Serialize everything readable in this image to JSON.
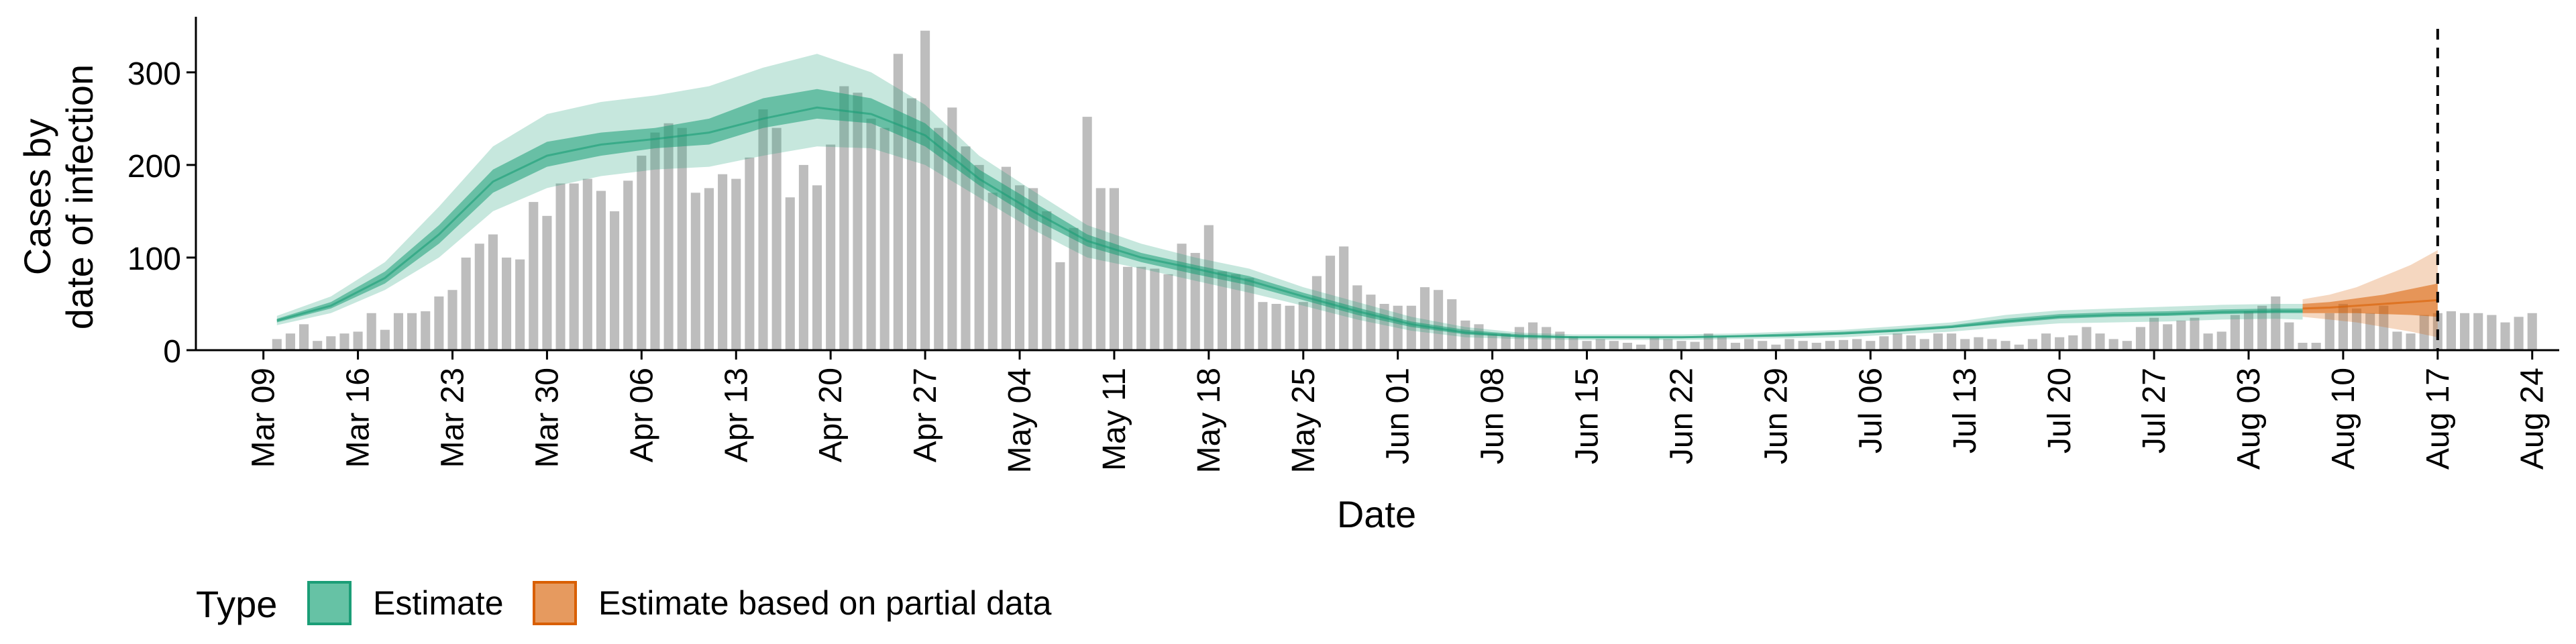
{
  "chart_data": {
    "type": "bar",
    "xlabel": "Date",
    "ylabel": [
      "Cases by",
      "date of infection"
    ],
    "ylim": [
      0,
      360
    ],
    "yticks": [
      0,
      100,
      200,
      300
    ],
    "xlim": [
      "2020-03-04",
      "2020-08-26"
    ],
    "xticks": [
      {
        "date": "2020-03-09",
        "label": "Mar 09"
      },
      {
        "date": "2020-03-16",
        "label": "Mar 16"
      },
      {
        "date": "2020-03-23",
        "label": "Mar 23"
      },
      {
        "date": "2020-03-30",
        "label": "Mar 30"
      },
      {
        "date": "2020-04-06",
        "label": "Apr 06"
      },
      {
        "date": "2020-04-13",
        "label": "Apr 13"
      },
      {
        "date": "2020-04-20",
        "label": "Apr 20"
      },
      {
        "date": "2020-04-27",
        "label": "Apr 27"
      },
      {
        "date": "2020-05-04",
        "label": "May 04"
      },
      {
        "date": "2020-05-11",
        "label": "May 11"
      },
      {
        "date": "2020-05-18",
        "label": "May 18"
      },
      {
        "date": "2020-05-25",
        "label": "May 25"
      },
      {
        "date": "2020-06-01",
        "label": "Jun 01"
      },
      {
        "date": "2020-06-08",
        "label": "Jun 08"
      },
      {
        "date": "2020-06-15",
        "label": "Jun 15"
      },
      {
        "date": "2020-06-22",
        "label": "Jun 22"
      },
      {
        "date": "2020-06-29",
        "label": "Jun 29"
      },
      {
        "date": "2020-07-06",
        "label": "Jul 06"
      },
      {
        "date": "2020-07-13",
        "label": "Jul 13"
      },
      {
        "date": "2020-07-20",
        "label": "Jul 20"
      },
      {
        "date": "2020-07-27",
        "label": "Jul 27"
      },
      {
        "date": "2020-08-03",
        "label": "Aug 03"
      },
      {
        "date": "2020-08-10",
        "label": "Aug 10"
      },
      {
        "date": "2020-08-17",
        "label": "Aug 17"
      },
      {
        "date": "2020-08-24",
        "label": "Aug 24"
      }
    ],
    "reference_line": "2020-08-17",
    "grid": false,
    "legend": {
      "position": "bottom-left",
      "title": "Type",
      "entries": [
        {
          "label": "Estimate",
          "fill": "#66C2A5",
          "stroke": "#1B9E77"
        },
        {
          "label": "Estimate based on partial data",
          "fill": "#E69A5F",
          "stroke": "#D95F02"
        }
      ]
    },
    "colors": {
      "bars": "#BDBDBD",
      "estimate": "#1B9E77",
      "partial": "#D95F02",
      "reference_line": "#000000"
    },
    "reported_cases": {
      "start_date": "2020-03-10",
      "values": [
        12,
        18,
        28,
        10,
        15,
        18,
        20,
        40,
        22,
        40,
        40,
        42,
        58,
        65,
        100,
        115,
        125,
        100,
        98,
        160,
        145,
        180,
        180,
        185,
        172,
        150,
        183,
        210,
        235,
        245,
        240,
        170,
        175,
        190,
        185,
        208,
        260,
        240,
        165,
        200,
        178,
        222,
        285,
        278,
        250,
        240,
        320,
        272,
        345,
        240,
        262,
        220,
        200,
        170,
        198,
        178,
        175,
        150,
        95,
        132,
        252,
        175,
        175,
        90,
        90,
        88,
        82,
        115,
        105,
        135,
        85,
        82,
        78,
        52,
        50,
        48,
        52,
        80,
        102,
        112,
        70,
        60,
        50,
        48,
        48,
        68,
        65,
        55,
        32,
        28,
        18,
        18,
        25,
        30,
        25,
        20,
        15,
        10,
        12,
        10,
        8,
        6,
        14,
        12,
        10,
        9,
        18,
        14,
        8,
        12,
        10,
        6,
        12,
        10,
        8,
        10,
        11,
        12,
        10,
        15,
        18,
        16,
        12,
        18,
        18,
        12,
        14,
        12,
        10,
        6,
        12,
        18,
        14,
        16,
        25,
        18,
        12,
        10,
        25,
        35,
        28,
        32,
        35,
        18,
        20,
        38,
        42,
        48,
        58,
        30,
        8,
        8,
        40,
        50,
        45,
        40,
        48,
        20,
        18,
        38,
        40,
        42,
        40,
        40,
        38,
        30,
        36,
        40
      ]
    },
    "estimate": {
      "dates": [
        "2020-03-10",
        "2020-03-14",
        "2020-03-18",
        "2020-03-22",
        "2020-03-26",
        "2020-03-30",
        "2020-04-03",
        "2020-04-07",
        "2020-04-11",
        "2020-04-15",
        "2020-04-19",
        "2020-04-23",
        "2020-04-27",
        "2020-05-01",
        "2020-05-05",
        "2020-05-09",
        "2020-05-13",
        "2020-05-17",
        "2020-05-21",
        "2020-05-25",
        "2020-05-29",
        "2020-06-02",
        "2020-06-06",
        "2020-06-10",
        "2020-06-14",
        "2020-06-18",
        "2020-06-22",
        "2020-06-26",
        "2020-06-30",
        "2020-07-04",
        "2020-07-08",
        "2020-07-12",
        "2020-07-16",
        "2020-07-20",
        "2020-07-24",
        "2020-07-28",
        "2020-08-01",
        "2020-08-05",
        "2020-08-07"
      ],
      "median": [
        32,
        48,
        78,
        125,
        182,
        210,
        222,
        228,
        235,
        250,
        262,
        255,
        232,
        185,
        150,
        118,
        100,
        88,
        75,
        58,
        42,
        28,
        19,
        15,
        14,
        14,
        14,
        15,
        16,
        18,
        21,
        25,
        31,
        36,
        38,
        39,
        41,
        42,
        42
      ],
      "lower50": [
        30,
        45,
        72,
        115,
        170,
        198,
        210,
        218,
        222,
        240,
        250,
        245,
        220,
        178,
        142,
        112,
        95,
        82,
        70,
        54,
        38,
        25,
        17,
        14,
        13,
        13,
        13,
        14,
        15,
        17,
        20,
        24,
        29,
        34,
        36,
        37,
        39,
        40,
        40
      ],
      "upper50": [
        34,
        52,
        85,
        135,
        195,
        225,
        235,
        240,
        250,
        272,
        282,
        272,
        245,
        195,
        160,
        125,
        105,
        92,
        80,
        62,
        46,
        31,
        22,
        17,
        15,
        15,
        15,
        16,
        18,
        20,
        23,
        27,
        34,
        39,
        41,
        42,
        44,
        45,
        45
      ],
      "lower90": [
        27,
        40,
        65,
        100,
        150,
        175,
        188,
        195,
        198,
        210,
        220,
        218,
        200,
        165,
        130,
        100,
        88,
        75,
        62,
        48,
        33,
        21,
        14,
        12,
        11,
        11,
        11,
        12,
        13,
        14,
        17,
        20,
        25,
        29,
        30,
        31,
        33,
        34,
        33
      ],
      "upper90": [
        37,
        58,
        95,
        155,
        220,
        255,
        268,
        275,
        285,
        305,
        320,
        300,
        265,
        210,
        172,
        135,
        115,
        100,
        88,
        68,
        52,
        36,
        25,
        19,
        17,
        17,
        17,
        18,
        20,
        22,
        26,
        30,
        38,
        43,
        45,
        47,
        49,
        50,
        50
      ]
    },
    "partial_estimate": {
      "dates": [
        "2020-08-07",
        "2020-08-09",
        "2020-08-11",
        "2020-08-13",
        "2020-08-15",
        "2020-08-17"
      ],
      "median": [
        45,
        46,
        48,
        50,
        52,
        54
      ],
      "lower50": [
        40,
        40,
        40,
        39,
        38,
        36
      ],
      "upper50": [
        50,
        52,
        56,
        60,
        66,
        72
      ],
      "lower90": [
        36,
        33,
        30,
        25,
        20,
        14
      ],
      "upper90": [
        55,
        60,
        68,
        80,
        92,
        108
      ]
    }
  }
}
